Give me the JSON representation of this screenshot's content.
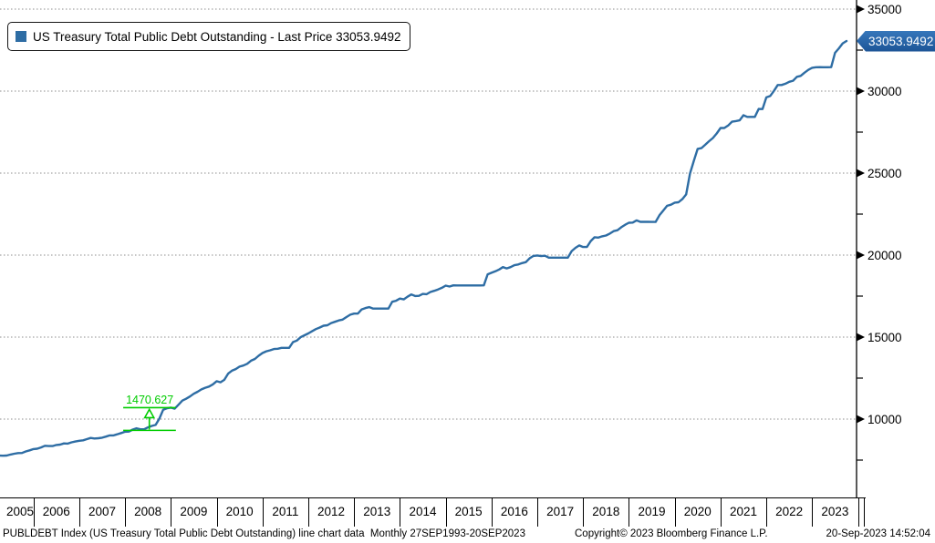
{
  "legend": {
    "label": "US Treasury Total Public Debt Outstanding - Last Price 33053.9492",
    "marker_color": "#2e6da4"
  },
  "last_price_badge": {
    "value": "33053.9492",
    "bg_top": "#3677bb",
    "bg_bottom": "#1c5496",
    "text_color": "#ffffff"
  },
  "status_bar": {
    "left": "PUBLDEBT Index (US Treasury Total Public Debt Outstanding) line chart data  Monthly 27SEP1993-20SEP2023",
    "copyright": "Copyright© 2023 Bloomberg Finance L.P.",
    "timestamp": "20-Sep-2023 14:52:04"
  },
  "chart_data": {
    "type": "line",
    "series_name": "US Treasury Total Public Debt Outstanding",
    "ticker": "PUBLDEBT Index",
    "frequency": "Monthly",
    "x_start": "2005-01",
    "x_end": "2023-09",
    "x_tick_years": [
      "2005",
      "2006",
      "2007",
      "2008",
      "2009",
      "2010",
      "2011",
      "2012",
      "2013",
      "2014",
      "2015",
      "2016",
      "2017",
      "2018",
      "2019",
      "2020",
      "2021",
      "2022",
      "2023"
    ],
    "y_major_ticks": [
      10000,
      15000,
      20000,
      25000,
      30000,
      35000
    ],
    "y_minor_ticks": [
      7500,
      12500,
      17500,
      22500,
      27500,
      32500
    ],
    "ylim": [
      5222,
      35556
    ],
    "xlim": [
      2005.27,
      2023.97
    ],
    "last_price": 33053.9492,
    "line_color": "#2e6da4",
    "grid_color": "#8c8c8c",
    "grid": "dotted-horizontal",
    "legend_position": "top-left",
    "monthly_values": [
      7613,
      7713,
      7776,
      7764,
      7777,
      7836,
      7887,
      7927,
      7933,
      8027,
      8092,
      8170,
      8196,
      8270,
      8371,
      8356,
      8357,
      8420,
      8445,
      8515,
      8507,
      8584,
      8633,
      8680,
      8708,
      8776,
      8849,
      8819,
      8833,
      8868,
      8932,
      9006,
      9008,
      9080,
      9149,
      9229,
      9238,
      9360,
      9438,
      9378,
      9377,
      9492,
      9585,
      9646,
      10025,
      10572,
      10661,
      10700,
      10632,
      10878,
      11127,
      11239,
      11378,
      11545,
      11669,
      11813,
      11910,
      11983,
      12115,
      12311,
      12245,
      12395,
      12773,
      12949,
      13050,
      13202,
      13264,
      13374,
      13562,
      13669,
      13861,
      14025,
      14131,
      14195,
      14270,
      14288,
      14345,
      14343,
      14343,
      14697,
      14790,
      14994,
      15110,
      15223,
      15356,
      15489,
      15582,
      15692,
      15725,
      15856,
      15933,
      16015,
      16066,
      16222,
      16369,
      16433,
      16433,
      16687,
      16771,
      16829,
      16737,
      16738,
      16738,
      16739,
      16738,
      17156,
      17217,
      17352,
      17300,
      17463,
      17601,
      17508,
      17517,
      17633,
      17618,
      17749,
      17824,
      17907,
      18005,
      18141,
      18082,
      18155,
      18152,
      18152,
      18152,
      18152,
      18151,
      18151,
      18151,
      18153,
      18827,
      18922,
      19012,
      19125,
      19264,
      19187,
      19265,
      19382,
      19427,
      19510,
      19573,
      19805,
      19948,
      19977,
      19937,
      19959,
      19846,
      19846,
      19846,
      19845,
      19845,
      19845,
      20245,
      20442,
      20590,
      20493,
      20494,
      20856,
      21090,
      21068,
      21145,
      21195,
      21313,
      21459,
      21516,
      21700,
      21850,
      21974,
      21983,
      22115,
      22028,
      22027,
      22026,
      22023,
      22022,
      22428,
      22719,
      23008,
      23075,
      23201,
      23224,
      23409,
      23700,
      24974,
      25746,
      26477,
      26525,
      26729,
      26945,
      27137,
      27419,
      27748,
      27748,
      27902,
      28133,
      28175,
      28218,
      28529,
      28428,
      28427,
      28429,
      28909,
      28908,
      29617,
      29700,
      30012,
      30371,
      30374,
      30448,
      30569,
      30632,
      30873,
      30928,
      31123,
      31294,
      31420,
      31455,
      31459,
      31458,
      31458,
      31464,
      32332,
      32608,
      32914,
      33053.9492
    ],
    "annotation": {
      "label": "1470.627",
      "color": "#00cc00",
      "from_value": 9229.2,
      "to_value": 10699.827,
      "x_year_start": 2007.96,
      "x_year_end": 2009.11,
      "arrow_x_year": 2008.53
    }
  }
}
